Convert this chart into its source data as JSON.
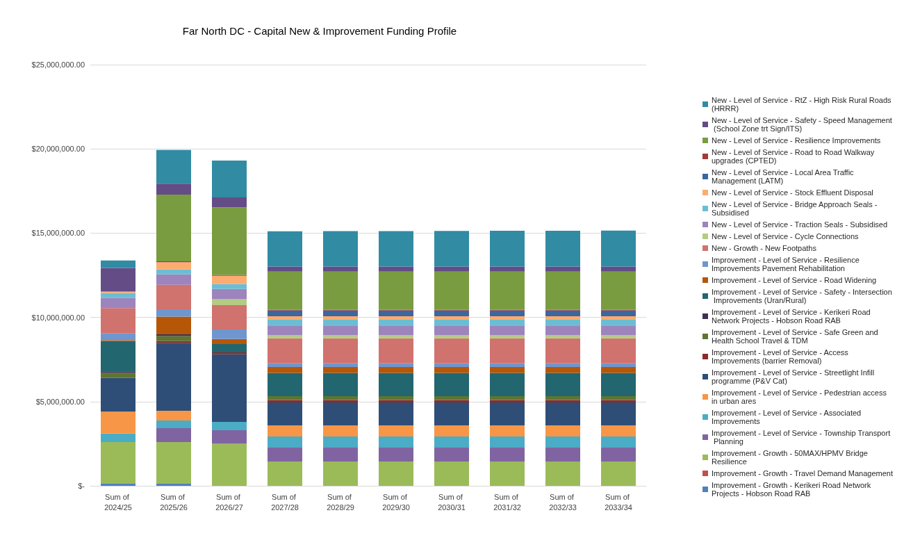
{
  "chart_data": {
    "type": "bar",
    "title": "Far North DC - Capital New & Improvement Funding Profile",
    "stacked": true,
    "grid": "y",
    "legend": "right",
    "categories": [
      "Sum of 2024/25",
      "Sum of 2025/26",
      "Sum of 2026/27",
      "Sum of 2027/28",
      "Sum of 2028/29",
      "Sum of 2029/30",
      "Sum of 2030/31",
      "Sum of 2031/32",
      "Sum of 2032/33",
      "Sum of 2033/34"
    ],
    "ylim": [
      0,
      25000000
    ],
    "yticks": [
      {
        "value": 0,
        "label": "$-"
      },
      {
        "value": 5000000,
        "label": "$5,000,000.00"
      },
      {
        "value": 10000000,
        "label": "$10,000,000.00"
      },
      {
        "value": 15000000,
        "label": "$15,000,000.00"
      },
      {
        "value": 20000000,
        "label": "$20,000,000.00"
      },
      {
        "value": 25000000,
        "label": "$25,000,000.00"
      }
    ],
    "series": [
      {
        "name": "Improvement - Growth - Kerikeri Road Network Projects - Hobson Road RAB",
        "color": "#4f81bd",
        "values": [
          120000,
          120000,
          null,
          null,
          null,
          null,
          null,
          null,
          null,
          null
        ]
      },
      {
        "name": "Improvement - Growth - Travel Demand Management",
        "color": "#c0504d",
        "values": [
          null,
          null,
          null,
          null,
          null,
          null,
          null,
          null,
          null,
          null
        ]
      },
      {
        "name": "Improvement - Growth - 50MAX/HPMV Bridge Resilience",
        "color": "#9bbb59",
        "values": [
          2480000,
          2480000,
          2500000,
          1440000,
          1440000,
          1440000,
          1440000,
          1440000,
          1440000,
          1440000
        ]
      },
      {
        "name": "Improvement - Level of Service - Township Transport Planning",
        "color": "#8064a2",
        "values": [
          null,
          820000,
          800000,
          830000,
          830000,
          830000,
          830000,
          830000,
          830000,
          830000
        ]
      },
      {
        "name": "Improvement - Level of Service - Associated Improvements",
        "color": "#4bacc6",
        "values": [
          500000,
          460000,
          500000,
          660000,
          660000,
          660000,
          660000,
          660000,
          660000,
          660000
        ]
      },
      {
        "name": "Improvement - Level of Service - Pedestrian access in urban ares",
        "color": "#f79646",
        "values": [
          1300000,
          580000,
          null,
          660000,
          660000,
          660000,
          660000,
          660000,
          660000,
          660000
        ]
      },
      {
        "name": "Improvement - Level of Service - Streetlight Infill programme (P&V Cat)",
        "color": "#2e4e77",
        "values": [
          2000000,
          4030000,
          4010000,
          1360000,
          1360000,
          1360000,
          1360000,
          1360000,
          1360000,
          1360000
        ]
      },
      {
        "name": "Improvement - Level of Service - Access Improvements (barrier Removal)",
        "color": "#8b2c2a",
        "values": [
          null,
          100000,
          110000,
          140000,
          140000,
          140000,
          140000,
          140000,
          140000,
          140000
        ]
      },
      {
        "name": "Improvement - Level of Service - Safe Green and Health School Travel & TDM",
        "color": "#5f7530",
        "values": [
          300000,
          300000,
          null,
          230000,
          230000,
          230000,
          230000,
          230000,
          230000,
          230000
        ]
      },
      {
        "name": "Improvement - Level of Service - Kerikeri Road Network Projects - Hobson Road RAB",
        "color": "#403152",
        "values": [
          100000,
          100000,
          null,
          null,
          null,
          null,
          null,
          null,
          null,
          null
        ]
      },
      {
        "name": "Improvement - Level of Service - Safety - Intersection Improvements (Uran/Rural)",
        "color": "#22666f",
        "values": [
          1800000,
          null,
          500000,
          1380000,
          1380000,
          1380000,
          1380000,
          1380000,
          1380000,
          1380000
        ]
      },
      {
        "name": "Improvement - Level of Service - Road Widening",
        "color": "#b65708",
        "values": [
          50000,
          1060000,
          300000,
          350000,
          350000,
          350000,
          350000,
          350000,
          350000,
          350000
        ]
      },
      {
        "name": "Improvement - Level of Service - Resilience Improvements Pavement Rehabilitation",
        "color": "#6f96cf",
        "values": [
          400000,
          430000,
          560000,
          220000,
          220000,
          220000,
          220000,
          220000,
          220000,
          220000
        ]
      },
      {
        "name": "New - Growth - New Footpaths",
        "color": "#d0726e",
        "values": [
          1500000,
          1450000,
          1450000,
          1490000,
          1490000,
          1490000,
          1490000,
          1490000,
          1490000,
          1490000
        ]
      },
      {
        "name": "New - Level of Service - Cycle Connections",
        "color": "#b3cc82",
        "values": [
          null,
          null,
          350000,
          190000,
          190000,
          190000,
          190000,
          190000,
          190000,
          190000
        ]
      },
      {
        "name": "New - Level of Service - Traction Seals - Subsidised",
        "color": "#9d84bd",
        "values": [
          600000,
          620000,
          610000,
          540000,
          540000,
          540000,
          540000,
          540000,
          540000,
          540000
        ]
      },
      {
        "name": "New - Level of Service - Bridge Approach Seals - Subsidised",
        "color": "#6cbdd3",
        "values": [
          300000,
          300000,
          290000,
          370000,
          370000,
          370000,
          370000,
          370000,
          370000,
          370000
        ]
      },
      {
        "name": "New - Level of Service - Stock Effluent Disposal",
        "color": "#fbac70",
        "values": [
          80000,
          420000,
          490000,
          210000,
          210000,
          210000,
          210000,
          210000,
          210000,
          210000
        ]
      },
      {
        "name": "New - Level of Service - Local Area Traffic Management (LATM)",
        "color": "#3a67a0",
        "values": [
          null,
          null,
          null,
          340000,
          340000,
          340000,
          340000,
          340000,
          340000,
          340000
        ]
      },
      {
        "name": "New - Level of Service - Road to Road Walkway upgrades (CPTED)",
        "color": "#a33b38",
        "values": [
          null,
          50000,
          50000,
          50000,
          50000,
          50000,
          50000,
          50000,
          50000,
          50000
        ]
      },
      {
        "name": "New - Level of Service - Resilience Improvements",
        "color": "#7a9c40",
        "values": [
          null,
          3970000,
          4010000,
          2260000,
          2260000,
          2260000,
          2260000,
          2260000,
          2260000,
          2260000
        ]
      },
      {
        "name": "New - Level of Service - Safety - Speed Management (School Zone trt Sign/ITS)",
        "color": "#644c86",
        "values": [
          1400000,
          650000,
          590000,
          300000,
          300000,
          300000,
          300000,
          300000,
          300000,
          300000
        ]
      },
      {
        "name": "New - Level of Service - RtZ - High Risk Rural Roads (HRRR)",
        "color": "#318ba3",
        "values": [
          450000,
          2000000,
          2190000,
          2090000,
          2100000,
          2100000,
          2110000,
          2120000,
          2120000,
          2130000
        ]
      }
    ]
  }
}
